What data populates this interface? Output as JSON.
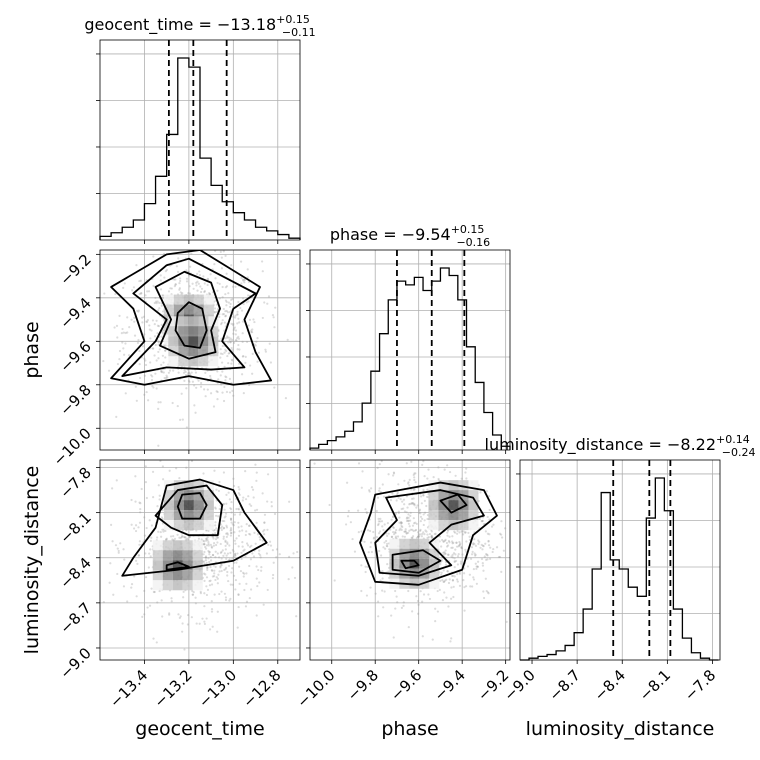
{
  "chart_data": {
    "type": "corner",
    "parameters": [
      "geocent_time",
      "phase",
      "luminosity_distance"
    ],
    "titles": [
      {
        "param": "geocent_time",
        "label": "geocent_time = ",
        "median": "−13.18",
        "plus": "+0.15",
        "minus": "−0.11"
      },
      {
        "param": "phase",
        "label": "phase = ",
        "median": "−9.54",
        "plus": "+0.15",
        "minus": "−0.16"
      },
      {
        "param": "luminosity_distance",
        "label": "luminosity_distance = ",
        "median": "−8.22",
        "plus": "+0.14",
        "minus": "−0.24"
      }
    ],
    "axes": {
      "geocent_time": {
        "range": [
          -13.6,
          -12.7
        ],
        "ticks": [
          -13.4,
          -13.2,
          -13.0,
          -12.8
        ],
        "tick_labels": [
          "−13.4",
          "−13.2",
          "−13.0",
          "−12.8"
        ]
      },
      "phase": {
        "range": [
          -10.1,
          -9.18
        ],
        "ticks": [
          -10.0,
          -9.8,
          -9.6,
          -9.4,
          -9.2
        ],
        "tick_labels": [
          "−10.0",
          "−9.8",
          "−9.6",
          "−9.4",
          "−9.2"
        ]
      },
      "luminosity_distance": {
        "range": [
          -9.08,
          -7.75
        ],
        "ticks": [
          -9.0,
          -8.7,
          -8.4,
          -8.1,
          -7.8
        ],
        "tick_labels": [
          "−9.0",
          "−8.7",
          "−8.4",
          "−8.1",
          "−7.8"
        ]
      }
    },
    "histograms": [
      {
        "param": "geocent_time",
        "bin_edges": [
          -13.6,
          -13.55,
          -13.5,
          -13.45,
          -13.4,
          -13.35,
          -13.3,
          -13.25,
          -13.2,
          -13.15,
          -13.1,
          -13.05,
          -13.0,
          -12.95,
          -12.9,
          -12.85,
          -12.8,
          -12.75,
          -12.7
        ],
        "counts": [
          0.02,
          0.04,
          0.07,
          0.11,
          0.2,
          0.35,
          0.58,
          1.0,
          0.95,
          0.45,
          0.3,
          0.21,
          0.15,
          0.11,
          0.07,
          0.05,
          0.03,
          0.01
        ],
        "quantiles": [
          -13.29,
          -13.18,
          -13.03
        ]
      },
      {
        "param": "phase",
        "bin_edges": [
          -10.1,
          -10.06,
          -10.02,
          -9.98,
          -9.94,
          -9.9,
          -9.86,
          -9.82,
          -9.78,
          -9.74,
          -9.7,
          -9.66,
          -9.62,
          -9.58,
          -9.54,
          -9.5,
          -9.46,
          -9.42,
          -9.38,
          -9.34,
          -9.3,
          -9.26,
          -9.22,
          -9.18
        ],
        "counts": [
          0.01,
          0.03,
          0.05,
          0.07,
          0.1,
          0.15,
          0.25,
          0.42,
          0.62,
          0.8,
          0.9,
          0.88,
          0.92,
          0.85,
          0.9,
          0.97,
          0.93,
          0.8,
          0.55,
          0.36,
          0.2,
          0.08,
          0.02
        ],
        "quantiles": [
          -9.7,
          -9.54,
          -9.39
        ]
      },
      {
        "param": "luminosity_distance",
        "bin_edges": [
          -9.08,
          -9.02,
          -8.96,
          -8.9,
          -8.84,
          -8.78,
          -8.72,
          -8.66,
          -8.6,
          -8.54,
          -8.48,
          -8.42,
          -8.36,
          -8.3,
          -8.24,
          -8.18,
          -8.12,
          -8.06,
          -8.0,
          -7.94,
          -7.88,
          -7.82,
          -7.76
        ],
        "counts": [
          0.0,
          0.01,
          0.02,
          0.03,
          0.05,
          0.08,
          0.15,
          0.28,
          0.5,
          0.92,
          0.55,
          0.5,
          0.4,
          0.35,
          0.78,
          1.0,
          0.82,
          0.28,
          0.12,
          0.04,
          0.01,
          0.0
        ],
        "quantiles": [
          -8.46,
          -8.22,
          -8.08
        ]
      }
    ],
    "pairs": [
      {
        "x": "geocent_time",
        "y": "phase",
        "scatter_center": [
          -13.18,
          -9.55
        ],
        "density_peaks": [
          [
            -13.2,
            -9.5
          ],
          [
            -13.18,
            -9.6
          ]
        ],
        "contours": [
          [
            [
              -13.25,
              -9.47
            ],
            [
              -13.2,
              -9.42
            ],
            [
              -13.14,
              -9.45
            ],
            [
              -13.12,
              -9.55
            ],
            [
              -13.15,
              -9.63
            ],
            [
              -13.22,
              -9.62
            ],
            [
              -13.26,
              -9.55
            ]
          ],
          [
            [
              -13.35,
              -9.35
            ],
            [
              -13.22,
              -9.28
            ],
            [
              -13.1,
              -9.33
            ],
            [
              -13.06,
              -9.45
            ],
            [
              -13.1,
              -9.55
            ],
            [
              -13.08,
              -9.65
            ],
            [
              -13.2,
              -9.68
            ],
            [
              -13.33,
              -9.62
            ],
            [
              -13.28,
              -9.5
            ]
          ],
          [
            [
              -13.45,
              -9.38
            ],
            [
              -13.3,
              -9.25
            ],
            [
              -13.2,
              -9.22
            ],
            [
              -13.05,
              -9.3
            ],
            [
              -12.9,
              -9.38
            ],
            [
              -13.0,
              -9.45
            ],
            [
              -13.05,
              -9.6
            ],
            [
              -12.95,
              -9.72
            ],
            [
              -13.1,
              -9.73
            ],
            [
              -13.3,
              -9.72
            ],
            [
              -13.5,
              -9.76
            ],
            [
              -13.35,
              -9.6
            ],
            [
              -13.3,
              -9.5
            ]
          ],
          [
            [
              -13.55,
              -9.35
            ],
            [
              -13.3,
              -9.2
            ],
            [
              -13.15,
              -9.18
            ],
            [
              -12.88,
              -9.35
            ],
            [
              -12.95,
              -9.5
            ],
            [
              -12.9,
              -9.65
            ],
            [
              -12.83,
              -9.78
            ],
            [
              -13.0,
              -9.8
            ],
            [
              -13.2,
              -9.76
            ],
            [
              -13.4,
              -9.8
            ],
            [
              -13.55,
              -9.77
            ],
            [
              -13.4,
              -9.6
            ],
            [
              -13.45,
              -9.45
            ]
          ]
        ]
      },
      {
        "x": "geocent_time",
        "y": "luminosity_distance",
        "scatter_center": [
          -13.15,
          -8.3
        ],
        "density_peaks": [
          [
            -13.2,
            -8.05
          ],
          [
            -13.25,
            -8.45
          ]
        ],
        "contours": [
          [
            [
              -13.3,
              -8.45
            ],
            [
              -13.25,
              -8.43
            ],
            [
              -13.2,
              -8.46
            ],
            [
              -13.3,
              -8.48
            ]
          ],
          [
            [
              -13.23,
              -7.98
            ],
            [
              -13.15,
              -7.97
            ],
            [
              -13.12,
              -8.05
            ],
            [
              -13.15,
              -8.14
            ],
            [
              -13.23,
              -8.14
            ],
            [
              -13.25,
              -8.06
            ]
          ],
          [
            [
              -13.25,
              -7.95
            ],
            [
              -13.12,
              -7.92
            ],
            [
              -13.05,
              -8.05
            ],
            [
              -13.07,
              -8.25
            ],
            [
              -13.2,
              -8.25
            ],
            [
              -13.28,
              -8.2
            ],
            [
              -13.35,
              -8.12
            ]
          ],
          [
            [
              -13.3,
              -7.92
            ],
            [
              -13.15,
              -7.88
            ],
            [
              -13.0,
              -7.95
            ],
            [
              -12.95,
              -8.1
            ],
            [
              -12.85,
              -8.3
            ],
            [
              -13.0,
              -8.42
            ],
            [
              -13.25,
              -8.48
            ],
            [
              -13.5,
              -8.52
            ],
            [
              -13.45,
              -8.4
            ],
            [
              -13.35,
              -8.2
            ]
          ]
        ]
      },
      {
        "x": "phase",
        "y": "luminosity_distance",
        "scatter_center": [
          -9.55,
          -8.25
        ],
        "density_peaks": [
          [
            -9.44,
            -8.05
          ],
          [
            -9.62,
            -8.44
          ]
        ],
        "contours": [
          [
            [
              -9.68,
              -8.42
            ],
            [
              -9.62,
              -8.42
            ],
            [
              -9.6,
              -8.45
            ],
            [
              -9.66,
              -8.47
            ]
          ],
          [
            [
              -9.5,
              -8.02
            ],
            [
              -9.42,
              -7.98
            ],
            [
              -9.38,
              -8.05
            ],
            [
              -9.45,
              -8.1
            ]
          ],
          [
            [
              -9.72,
              -8.38
            ],
            [
              -9.58,
              -8.35
            ],
            [
              -9.5,
              -8.42
            ],
            [
              -9.6,
              -8.5
            ],
            [
              -9.72,
              -8.48
            ]
          ],
          [
            [
              -9.75,
              -8.0
            ],
            [
              -9.5,
              -7.95
            ],
            [
              -9.35,
              -8.0
            ],
            [
              -9.3,
              -8.12
            ],
            [
              -9.45,
              -8.18
            ],
            [
              -9.55,
              -8.3
            ],
            [
              -9.45,
              -8.45
            ],
            [
              -9.6,
              -8.52
            ],
            [
              -9.78,
              -8.5
            ],
            [
              -9.8,
              -8.3
            ],
            [
              -9.7,
              -8.15
            ]
          ],
          [
            [
              -9.8,
              -7.98
            ],
            [
              -9.5,
              -7.9
            ],
            [
              -9.3,
              -7.95
            ],
            [
              -9.24,
              -8.12
            ],
            [
              -9.35,
              -8.25
            ],
            [
              -9.4,
              -8.48
            ],
            [
              -9.6,
              -8.58
            ],
            [
              -9.8,
              -8.56
            ],
            [
              -9.87,
              -8.3
            ],
            [
              -9.82,
              -8.1
            ]
          ]
        ]
      }
    ]
  }
}
